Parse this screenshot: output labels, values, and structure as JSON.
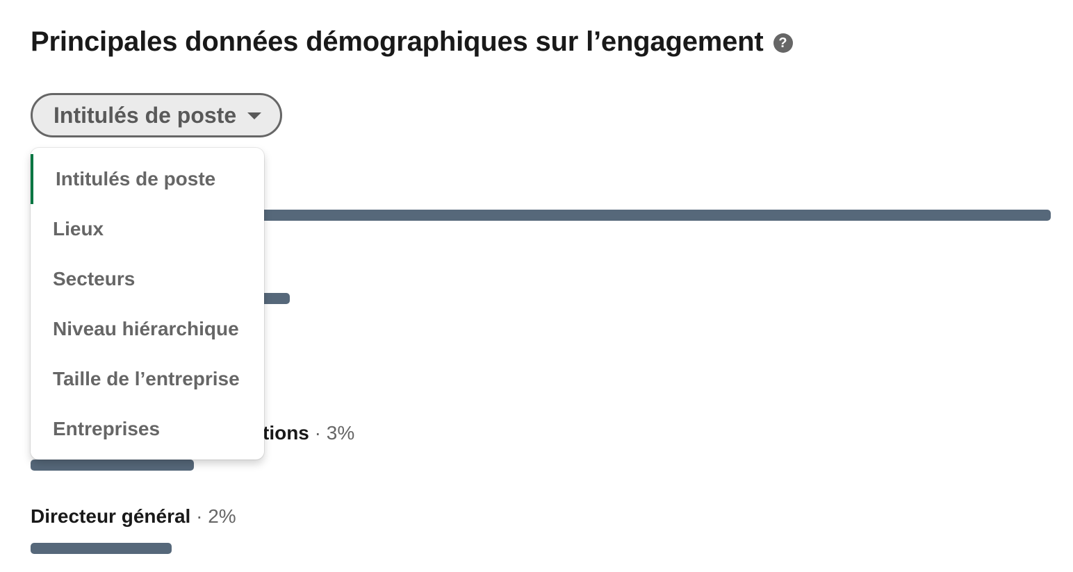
{
  "header": {
    "title": "Principales données démographiques sur l’engagement",
    "help_icon": "?"
  },
  "dropdown": {
    "selected_label": "Intitulés de poste",
    "options": [
      "Intitulés de poste",
      "Lieux",
      "Secteurs",
      "Niveau hiérarchique",
      "Taille de l’entreprise",
      "Entreprises"
    ]
  },
  "stats": [
    {
      "name_visible": "tions",
      "pct": "· 3%",
      "fraction": 0.16
    },
    {
      "name_visible": "Directeur général",
      "pct": "· 2%",
      "fraction": 0.138
    }
  ],
  "hidden_bars": [
    {
      "fraction": 1.0
    },
    {
      "fraction": 0.254
    }
  ],
  "colors": {
    "bar": "#56687a",
    "selected_indicator": "#057642"
  }
}
